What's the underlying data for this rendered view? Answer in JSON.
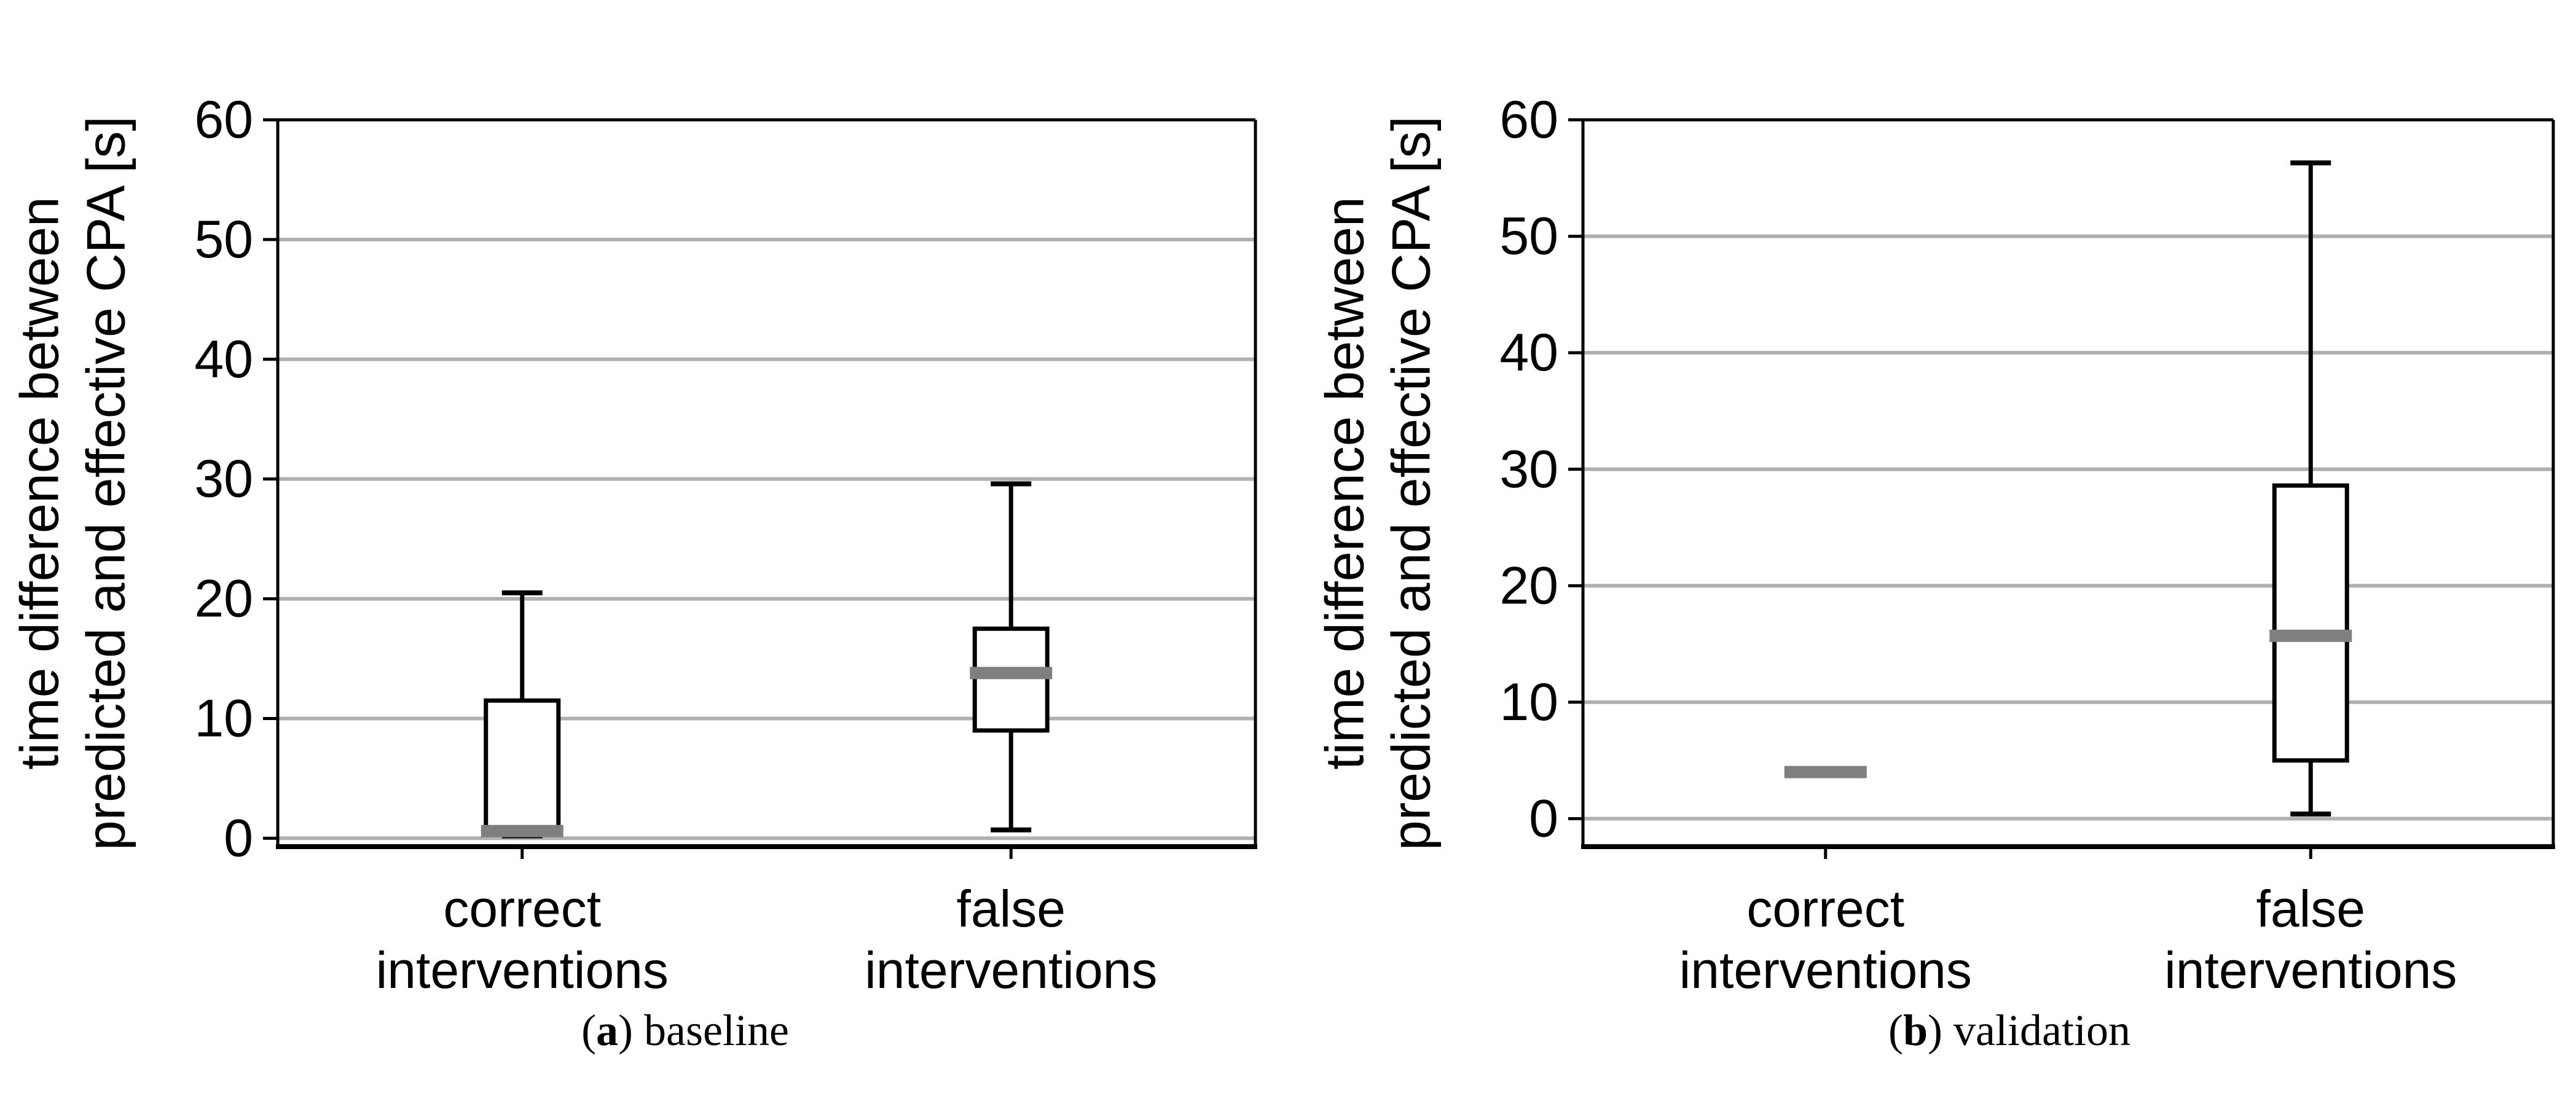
{
  "figure": {
    "ylabel_lines": [
      "time difference between",
      "predicted and effective CPA [s]"
    ],
    "colors": {
      "box_line": "#000000",
      "median": "#7f7f7f",
      "grid": "#b0b0b0",
      "background": "#ffffff"
    }
  },
  "captions": [
    {
      "open": "(",
      "letter": "a",
      "close": ")",
      "label": "baseline"
    },
    {
      "open": "(",
      "letter": "b",
      "close": ")",
      "label": "validation"
    }
  ],
  "chart_data": [
    {
      "type": "boxplot",
      "title": "(a) baseline",
      "ylabel": "time difference between predicted and effective CPA [s]",
      "ylabel_lines": [
        "time difference between",
        "predicted and effective CPA [s]"
      ],
      "categories": [
        "correct interventions",
        "false interventions"
      ],
      "category_lines": [
        [
          "correct",
          "interventions"
        ],
        [
          "false",
          "interventions"
        ]
      ],
      "yticks": [
        0,
        10,
        20,
        30,
        40,
        50,
        60
      ],
      "ylim": [
        -0.7,
        60
      ],
      "grid": "horizontal",
      "legend": "none",
      "series": [
        {
          "name": "correct interventions",
          "whisker_low": 0.2,
          "q1": 0.3,
          "median": 0.6,
          "q3": 11.5,
          "whisker_high": 20.5
        },
        {
          "name": "false interventions",
          "whisker_low": 0.7,
          "q1": 9.0,
          "median": 13.8,
          "q3": 17.5,
          "whisker_high": 29.6
        }
      ]
    },
    {
      "type": "boxplot",
      "title": "(b) validation",
      "ylabel": "time difference between predicted and effective CPA [s]",
      "ylabel_lines": [
        "time difference between",
        "predicted and effective CPA [s]"
      ],
      "categories": [
        "correct interventions",
        "false interventions"
      ],
      "category_lines": [
        [
          "correct",
          "interventions"
        ],
        [
          "false",
          "interventions"
        ]
      ],
      "yticks": [
        0,
        10,
        20,
        30,
        40,
        50,
        60
      ],
      "ylim": [
        -2.4,
        60
      ],
      "grid": "horizontal",
      "legend": "none",
      "series": [
        {
          "name": "correct interventions",
          "whisker_low": 4.0,
          "q1": 4.0,
          "median": 4.0,
          "q3": 4.0,
          "whisker_high": 4.0
        },
        {
          "name": "false interventions",
          "whisker_low": 0.4,
          "q1": 5.0,
          "median": 15.7,
          "q3": 28.6,
          "whisker_high": 56.3
        }
      ]
    }
  ]
}
